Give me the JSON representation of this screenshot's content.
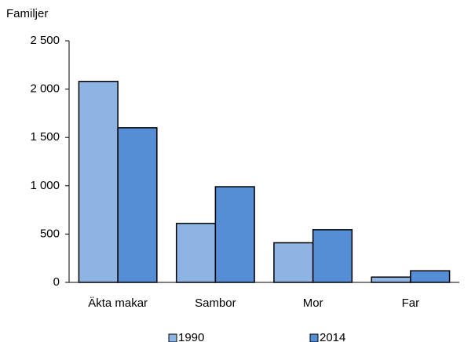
{
  "chart_data": {
    "type": "bar",
    "y_label": "Familjer",
    "categories": [
      "Äkta makar",
      "Sambor",
      "Mor",
      "Far"
    ],
    "series": [
      {
        "name": "1990",
        "color": "#8db4e2",
        "values": [
          2080,
          610,
          410,
          55
        ]
      },
      {
        "name": "2014",
        "color": "#558ed5",
        "values": [
          1600,
          990,
          545,
          120
        ]
      }
    ],
    "ylim": [
      0,
      2500
    ],
    "yticks": [
      0,
      500,
      {
        "value": 1000,
        "label": "1 000"
      },
      {
        "value": 1500,
        "label": "1 500"
      },
      {
        "value": 2000,
        "label": "2 000"
      },
      {
        "value": 2500,
        "label": "2 500"
      }
    ],
    "grid": false,
    "legend": "bottom"
  }
}
